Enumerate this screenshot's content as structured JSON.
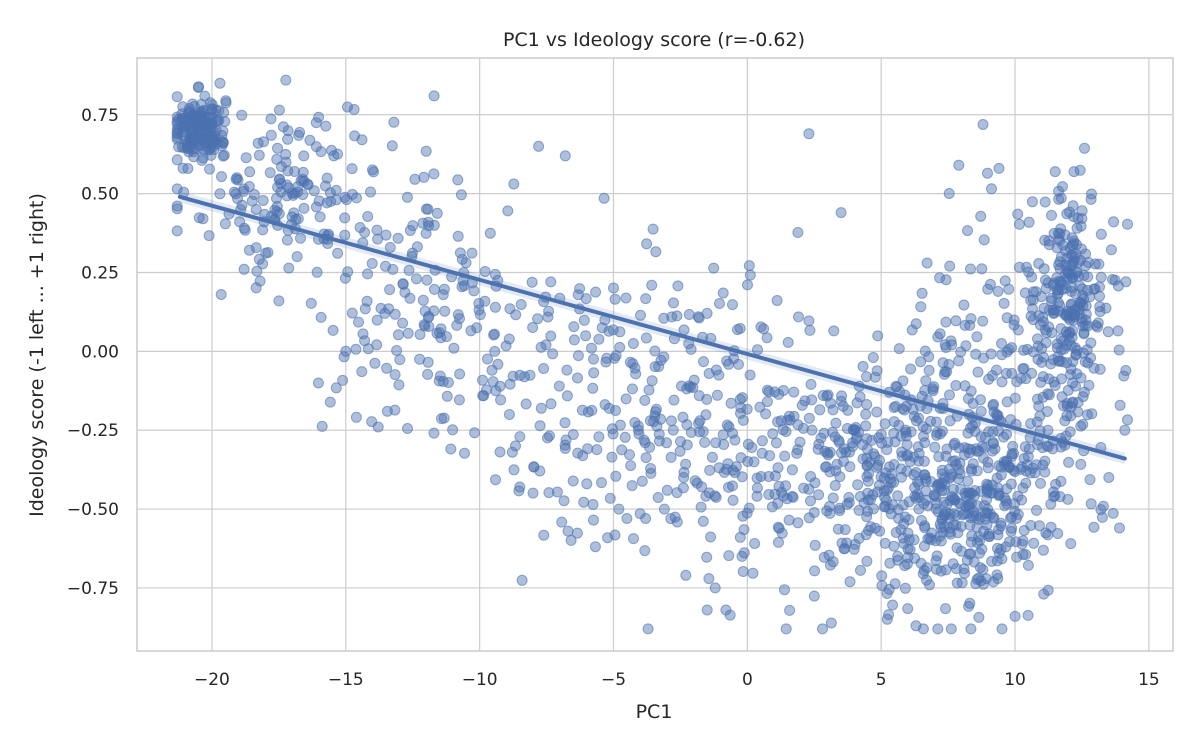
{
  "chart_data": {
    "type": "scatter",
    "title": "PC1 vs Ideology score (r=-0.62)",
    "xlabel": "PC1",
    "ylabel": "Ideology score (-1 left ... +1 right)",
    "xlim": [
      -22.8,
      15.9
    ],
    "ylim": [
      -0.95,
      0.93
    ],
    "xticks": [
      -20,
      -15,
      -10,
      -5,
      0,
      5,
      10,
      15
    ],
    "xtick_labels": [
      "−20",
      "−15",
      "−10",
      "−5",
      "0",
      "5",
      "10",
      "15"
    ],
    "yticks": [
      -0.75,
      -0.5,
      -0.25,
      0.0,
      0.25,
      0.5,
      0.75
    ],
    "ytick_labels": [
      "−0.75",
      "−0.50",
      "−0.25",
      "0.00",
      "0.25",
      "0.50",
      "0.75"
    ],
    "grid": true,
    "correlation_r": -0.62,
    "point_color": "#4c72b0",
    "regression_line": {
      "x_start": -21.2,
      "y_start": 0.49,
      "x_end": 14.1,
      "y_end": -0.34
    },
    "clusters": [
      {
        "name": "far-left tight cluster",
        "x_center": -20.5,
        "y_center": 0.71,
        "x_spread": 0.5,
        "y_spread": 0.05,
        "count": 180
      },
      {
        "name": "left tail",
        "x_center": -17.0,
        "y_center": 0.5,
        "x_spread": 1.8,
        "y_spread": 0.14,
        "count": 150
      },
      {
        "name": "left-center band",
        "x_center": -12.0,
        "y_center": 0.15,
        "x_spread": 2.5,
        "y_spread": 0.22,
        "count": 170
      },
      {
        "name": "center band",
        "x_center": -3.0,
        "y_center": -0.18,
        "x_spread": 3.5,
        "y_spread": 0.22,
        "count": 330
      },
      {
        "name": "right-center band",
        "x_center": 5.5,
        "y_center": -0.38,
        "x_spread": 2.8,
        "y_spread": 0.2,
        "count": 380
      },
      {
        "name": "right lower cluster",
        "x_center": 8.5,
        "y_center": -0.5,
        "x_spread": 1.8,
        "y_spread": 0.15,
        "count": 260
      },
      {
        "name": "right upper cluster",
        "x_center": 12.0,
        "y_center": 0.15,
        "x_spread": 0.7,
        "y_spread": 0.18,
        "count": 240
      },
      {
        "name": "right scattered",
        "x_center": 10.0,
        "y_center": -0.05,
        "x_spread": 2.0,
        "y_spread": 0.3,
        "count": 140
      }
    ],
    "notable_points": [
      {
        "x": -11.7,
        "y": 0.81
      },
      {
        "x": -19.7,
        "y": 0.85
      },
      {
        "x": 2.3,
        "y": 0.69
      },
      {
        "x": -7.8,
        "y": 0.65
      },
      {
        "x": -6.8,
        "y": 0.62
      },
      {
        "x": 7.9,
        "y": 0.59
      },
      {
        "x": 9.4,
        "y": 0.58
      },
      {
        "x": -15.0,
        "y": 0.0
      },
      {
        "x": -8.5,
        "y": -0.43
      },
      {
        "x": -4.8,
        "y": -0.5
      },
      {
        "x": -4.5,
        "y": -0.53
      },
      {
        "x": -3.8,
        "y": -0.53
      },
      {
        "x": -3.1,
        "y": -0.5
      },
      {
        "x": -2.3,
        "y": -0.71
      },
      {
        "x": -1.5,
        "y": -0.82
      },
      {
        "x": -1.2,
        "y": -0.75
      },
      {
        "x": -0.8,
        "y": -0.82
      },
      {
        "x": -0.2,
        "y": -0.65
      },
      {
        "x": -6.7,
        "y": -0.57
      },
      {
        "x": 6.3,
        "y": -0.87
      },
      {
        "x": 10.0,
        "y": -0.84
      },
      {
        "x": 13.9,
        "y": -0.56
      },
      {
        "x": 14.1,
        "y": -0.25
      },
      {
        "x": 13.5,
        "y": -0.4
      },
      {
        "x": 11.5,
        "y": 0.57
      },
      {
        "x": 12.2,
        "y": 0.57
      },
      {
        "x": 3.5,
        "y": 0.44
      },
      {
        "x": -18.8,
        "y": 0.26
      },
      {
        "x": -17.5,
        "y": 0.16
      }
    ]
  }
}
